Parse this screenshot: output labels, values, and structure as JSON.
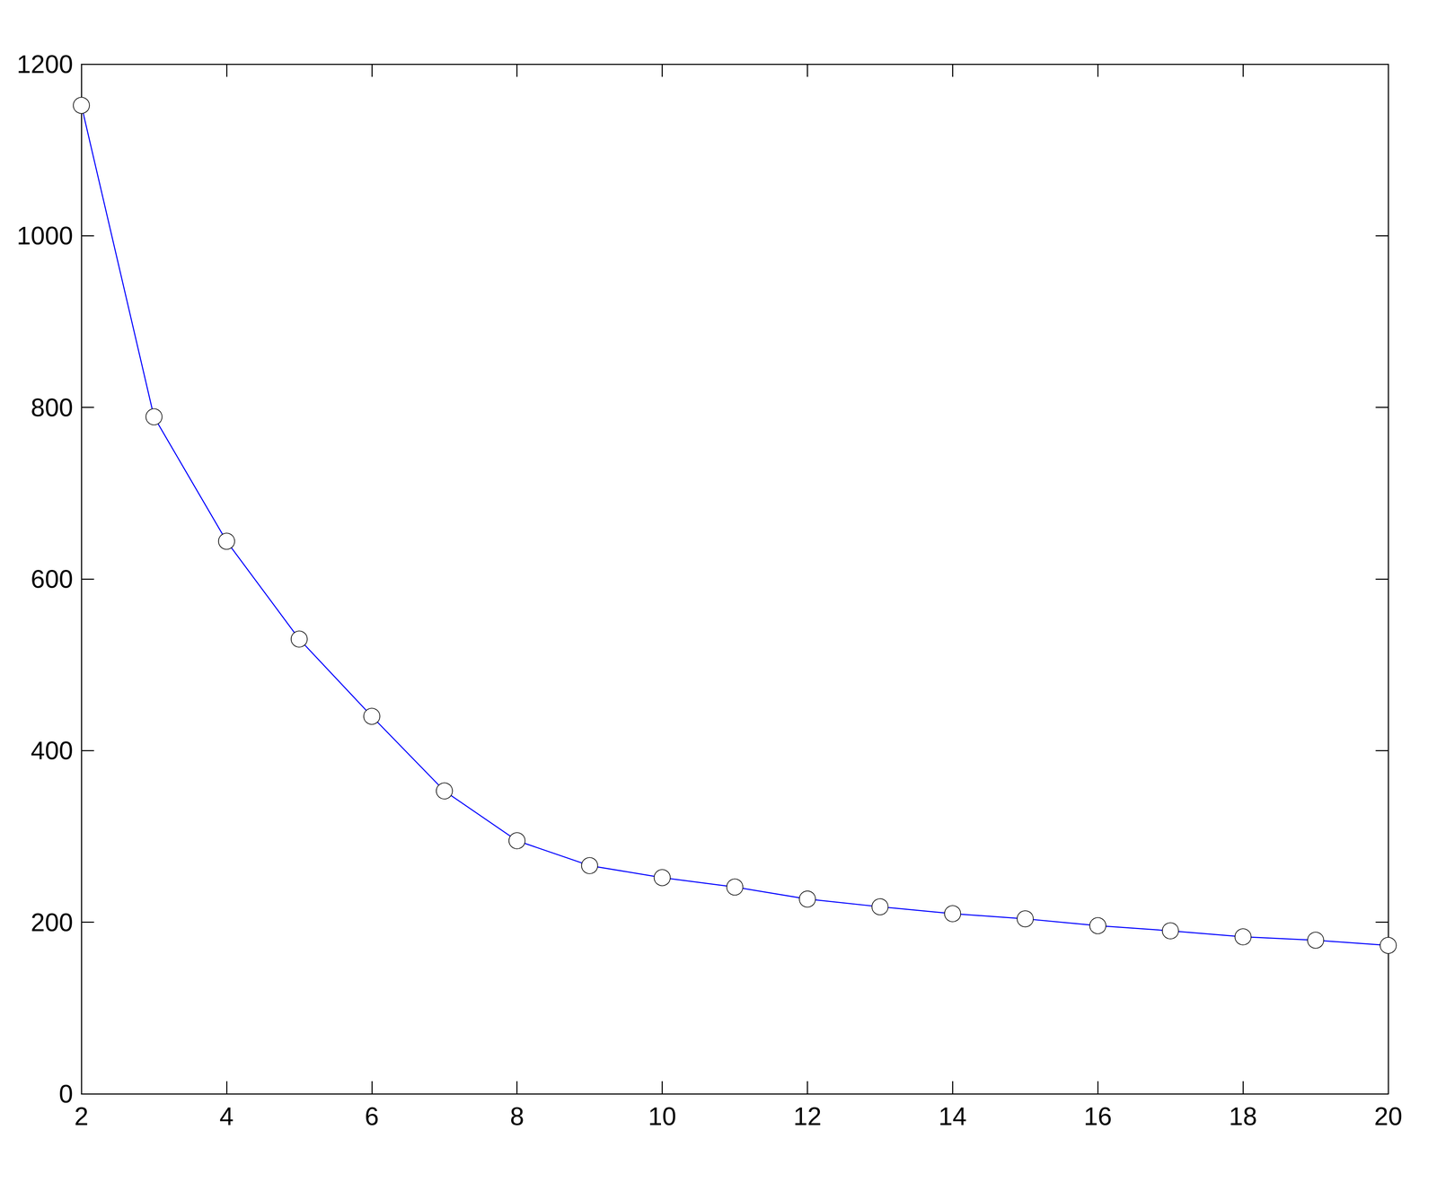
{
  "chart_data": {
    "type": "line",
    "x": [
      2,
      3,
      4,
      5,
      6,
      7,
      8,
      9,
      10,
      11,
      12,
      13,
      14,
      15,
      16,
      17,
      18,
      19,
      20
    ],
    "values": [
      1152,
      789,
      644,
      530,
      440,
      353,
      295,
      266,
      252,
      241,
      227,
      218,
      210,
      204,
      196,
      190,
      183,
      179,
      173
    ],
    "color": "#0000ff",
    "marker": "circle",
    "xlim": [
      2,
      20
    ],
    "xticks": [
      2,
      4,
      6,
      8,
      10,
      12,
      14,
      16,
      18,
      20
    ],
    "ylim": [
      0,
      1200
    ],
    "yticks": [
      0,
      200,
      400,
      600,
      800,
      1000,
      1200
    ],
    "grid": false
  }
}
